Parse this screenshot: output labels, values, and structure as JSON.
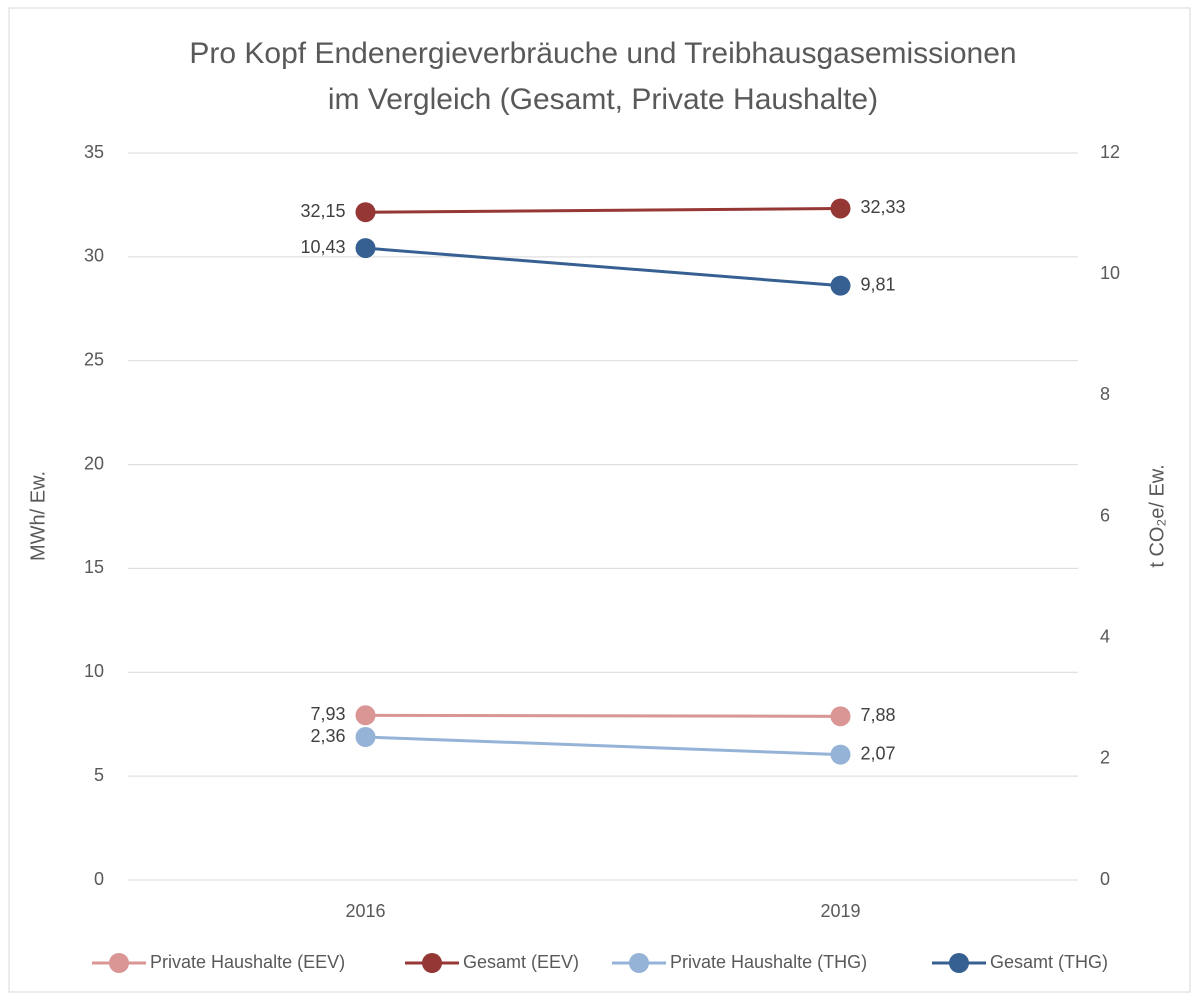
{
  "chart_data": {
    "type": "line",
    "title": [
      "Pro Kopf Endenergieverbräuche und Treibhausgasemissionen",
      "im Vergleich (Gesamt, Private Haushalte)"
    ],
    "y_label": "MWh/ Ew.",
    "y2_label": "t CO₂e/ Ew.",
    "categories": [
      "2016",
      "2019"
    ],
    "ylim": [
      0,
      35
    ],
    "yticks": [
      0,
      5,
      10,
      15,
      20,
      25,
      30,
      35
    ],
    "y2lim": [
      0,
      12
    ],
    "y2ticks": [
      0,
      2,
      4,
      6,
      8,
      10,
      12
    ],
    "grid": true,
    "legend": "bottom",
    "series": [
      {
        "name": "Private Haushalte (EEV)",
        "color": "#d99694",
        "values": [
          7.93,
          7.88
        ],
        "value_labels": [
          "7,93",
          "7,88"
        ]
      },
      {
        "name": "Gesamt (EEV)",
        "color": "#953735",
        "values": [
          32.15,
          32.33
        ],
        "value_labels": [
          "32,15",
          "32,33"
        ]
      },
      {
        "name": "Private Haushalte (THG)",
        "color": "#95b3d7",
        "values": [
          2.36,
          2.07
        ],
        "value_labels": [
          "2,36",
          "2,07"
        ],
        "axis": "y2"
      },
      {
        "name": "Gesamt (THG)",
        "color": "#376092",
        "values": [
          10.43,
          9.81
        ],
        "value_labels": [
          "10,43",
          "9,81"
        ],
        "axis": "y2"
      }
    ]
  }
}
